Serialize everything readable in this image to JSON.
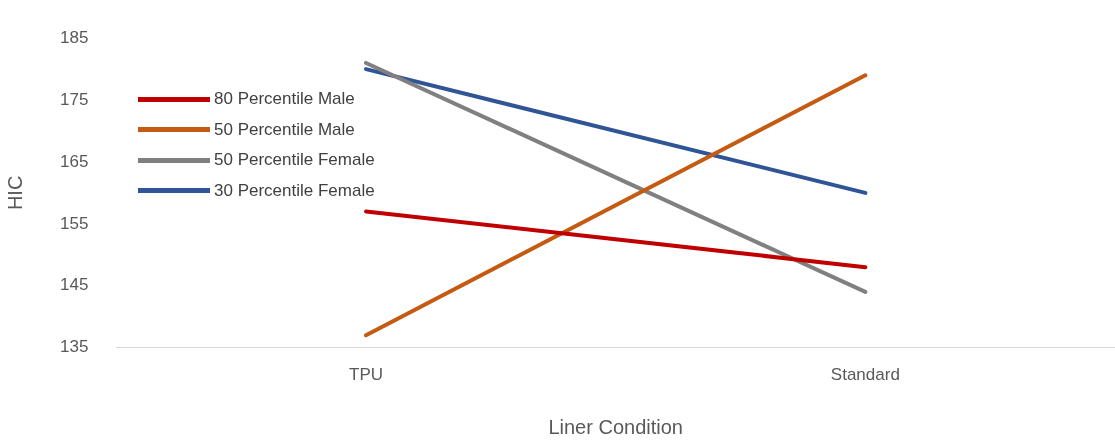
{
  "chart_data": {
    "type": "line",
    "xlabel": "Liner Condition",
    "ylabel": "HIC",
    "categories": [
      "TPU",
      "Standard"
    ],
    "series": [
      {
        "name": "80 Percentile Male",
        "color": "#c00000",
        "values": [
          157,
          148
        ]
      },
      {
        "name": "50 Percentile Male",
        "color": "#c55a11",
        "values": [
          137,
          179
        ]
      },
      {
        "name": "50 Percentile Female",
        "color": "#808080",
        "values": [
          181,
          144
        ]
      },
      {
        "name": "30 Percentile Female",
        "color": "#2f5597",
        "values": [
          180,
          160
        ]
      }
    ],
    "ylim": [
      135,
      185
    ],
    "yticks": [
      135,
      145,
      155,
      165,
      175,
      185
    ],
    "legend": "left"
  }
}
